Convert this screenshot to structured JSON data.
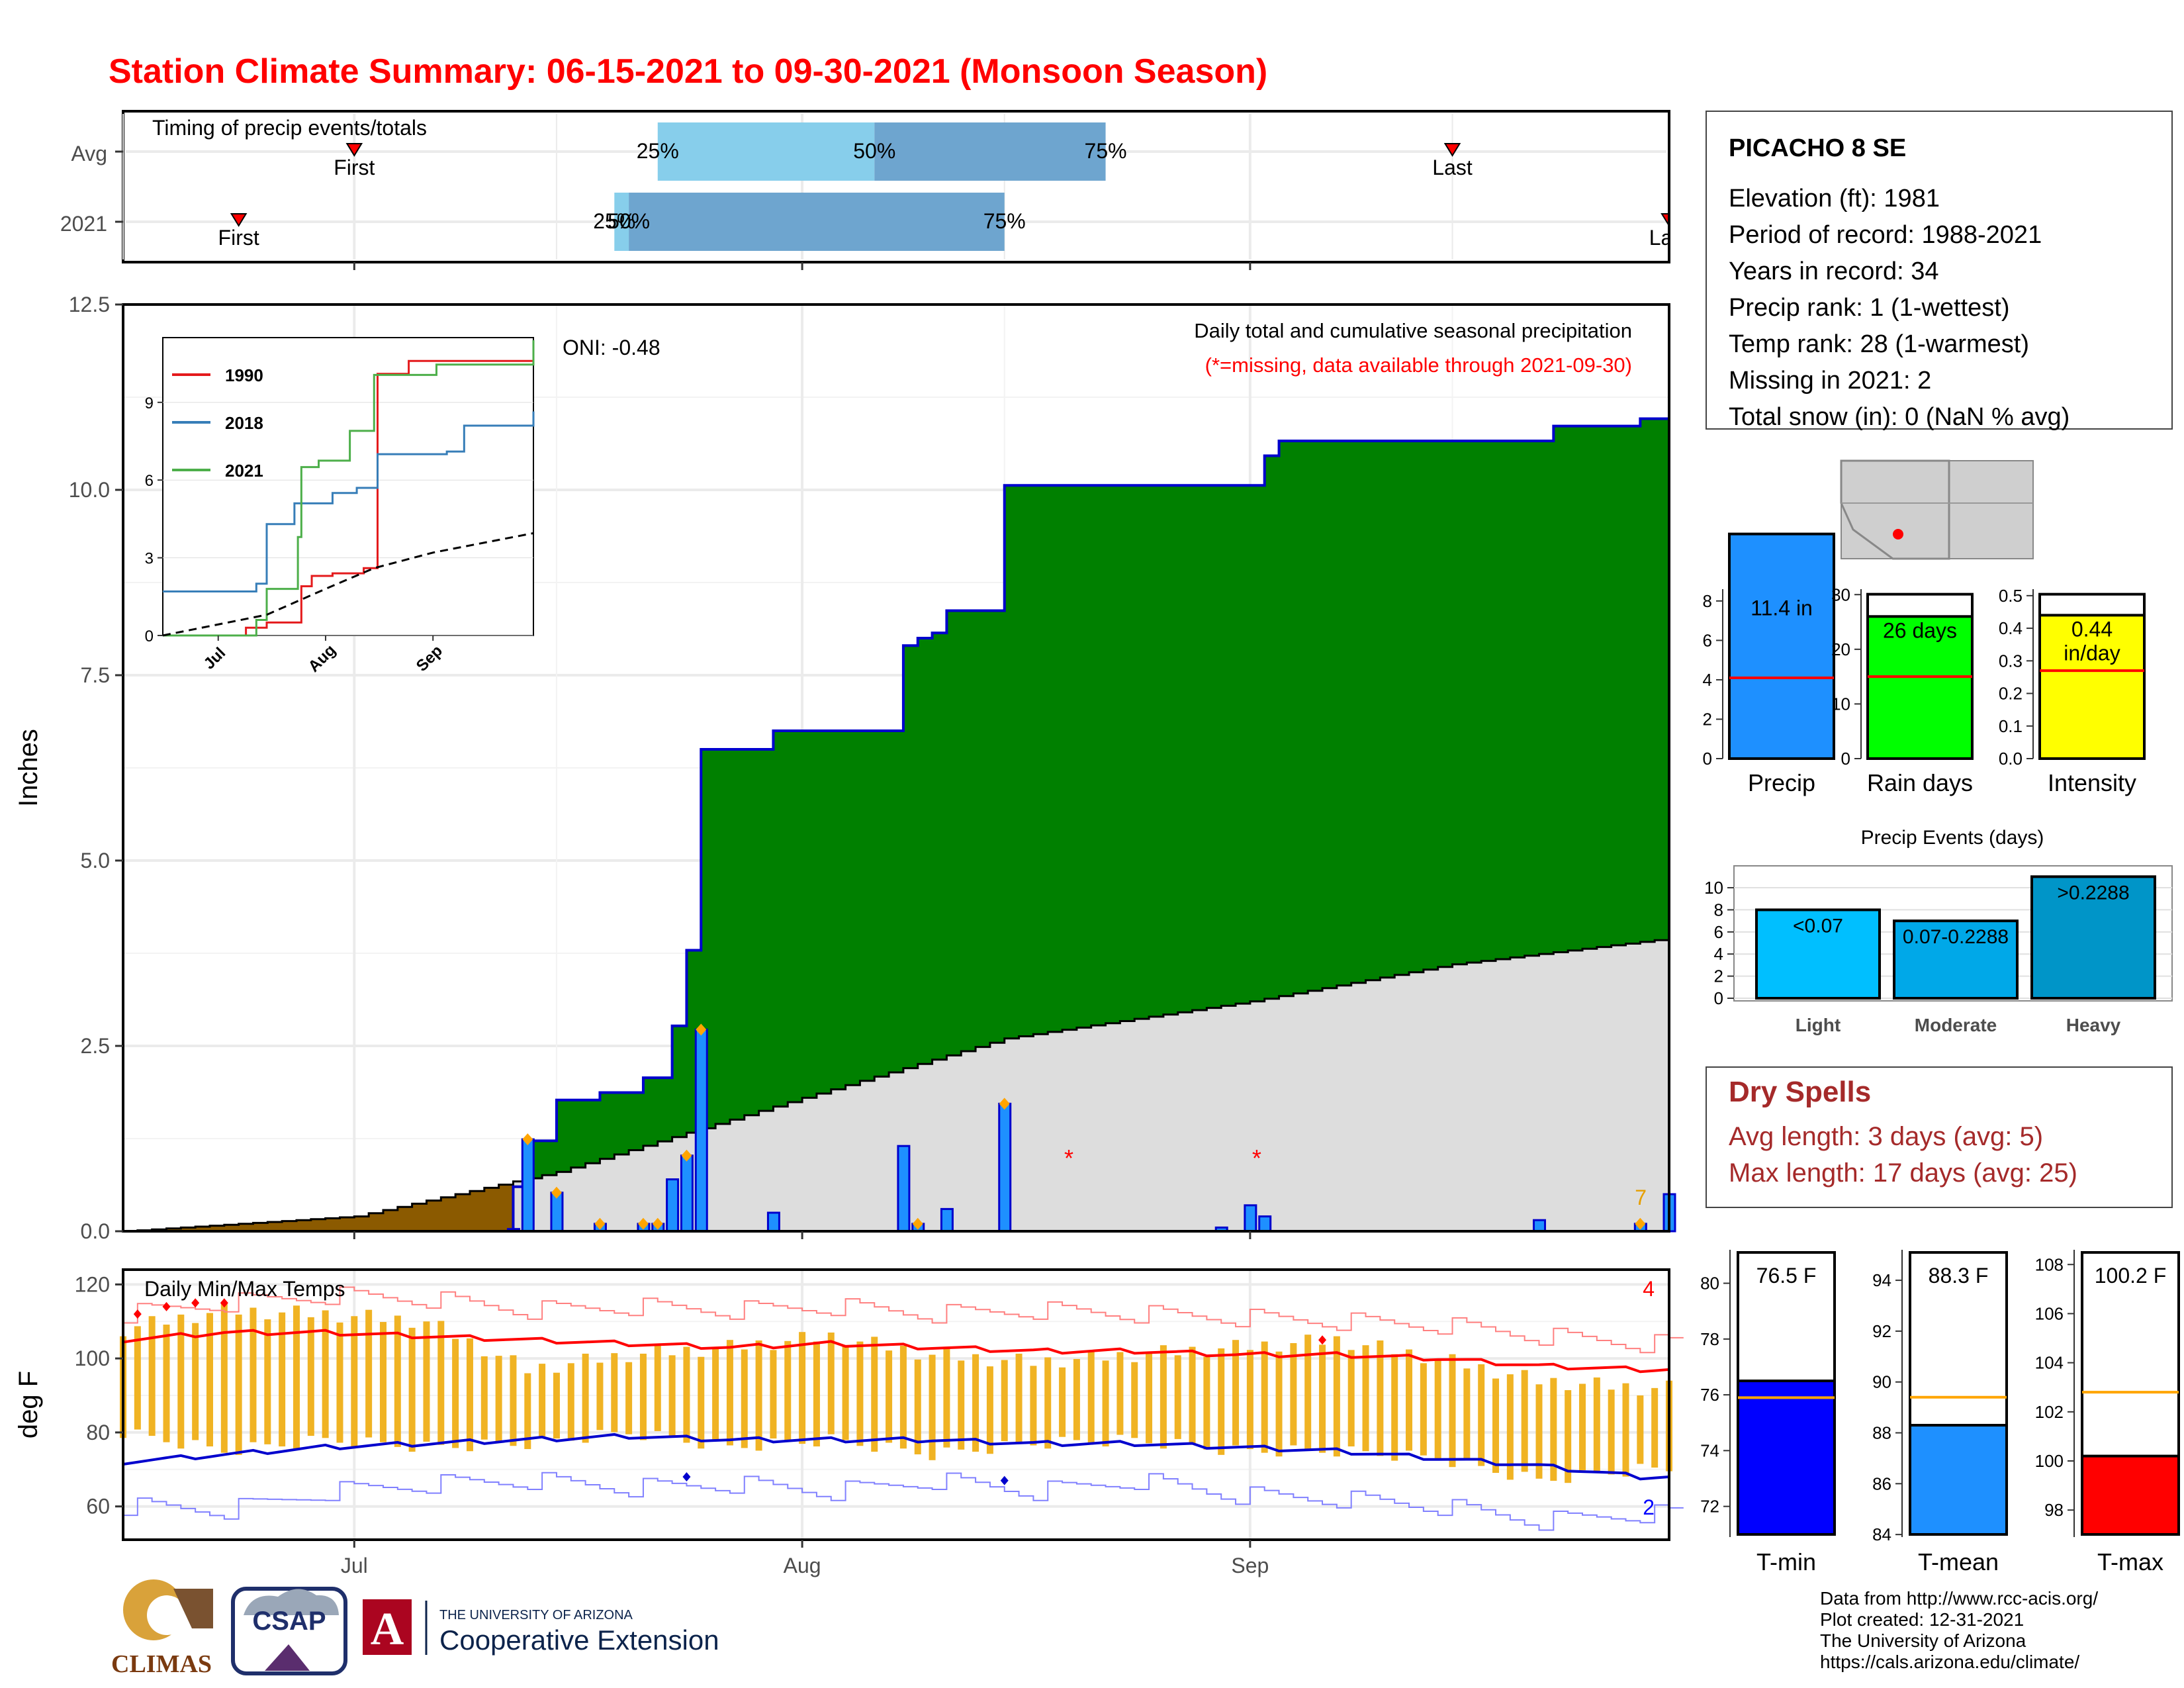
{
  "title": "Station Climate Summary: 06-15-2021 to 09-30-2021 (Monsoon Season)",
  "station": {
    "name": "PICACHO 8 SE",
    "lines": [
      "Elevation (ft): 1981",
      "Period of record: 1988-2021",
      "Years in record: 34",
      "Precip rank: 1 (1-wettest)",
      "Temp rank: 28 (1-warmest)",
      "Missing in 2021: 2",
      "Total snow (in): 0 (NaN % avg)"
    ]
  },
  "timing": {
    "title": "Timing of precip events/totals",
    "rows": [
      "Avg",
      "2021"
    ],
    "avg": {
      "first": "2021-07-01",
      "p25": "2021-07-22",
      "p50": "2021-08-06",
      "p75": "2021-08-22",
      "last": "2021-09-15"
    },
    "y2021": {
      "first": "2021-06-23",
      "p25": "2021-07-19",
      "p50": "2021-07-20",
      "p75": "2021-08-15",
      "last": "2021-09-30"
    },
    "labels": {
      "first": "First",
      "last": "Last",
      "p25": "25%",
      "p50": "50%",
      "p75": "75%"
    }
  },
  "main": {
    "ylabel": "Inches",
    "legend_line1": "Daily total and cumulative seasonal precipitation",
    "legend_line2": "(*=missing, data available through 2021-09-30)",
    "oni": "ONI: -0.48",
    "yticks": [
      "0.0",
      "2.5",
      "5.0",
      "7.5",
      "10.0",
      "12.5"
    ],
    "xticks": [
      "Jul",
      "Aug",
      "Sep"
    ],
    "days_count_label": "7",
    "missing_marker": "*"
  },
  "inset": {
    "legend": [
      "1990",
      "2018",
      "2021"
    ],
    "colors": [
      "#e41a1c",
      "#377eb8",
      "#4daf4a"
    ],
    "yticks": [
      "0",
      "3",
      "6",
      "9"
    ],
    "xticks": [
      "Jul",
      "Aug",
      "Sep"
    ]
  },
  "temps": {
    "title": "Daily Min/Max Temps",
    "ylabel": "deg F",
    "yticks": [
      "60",
      "80",
      "100",
      "120"
    ],
    "count_hot": "4",
    "count_cold": "2"
  },
  "summary_bars": {
    "precip": {
      "label": "Precip",
      "value_text": "11.4 in",
      "value": 11.4,
      "avg": 4.1,
      "yticks": [
        "0",
        "2",
        "4",
        "6",
        "8"
      ]
    },
    "raindays": {
      "label": "Rain days",
      "value_text": "26 days",
      "value": 26,
      "avg": 15,
      "yticks": [
        "0",
        "10",
        "20",
        "30"
      ]
    },
    "intensity": {
      "label": "Intensity",
      "value_text": "0.44",
      "unit": "in/day",
      "value": 0.44,
      "avg": 0.27,
      "yticks": [
        "0.0",
        "0.1",
        "0.2",
        "0.3",
        "0.4",
        "0.5"
      ]
    }
  },
  "events": {
    "title": "Precip Events (days)",
    "categories": [
      "Light",
      "Moderate",
      "Heavy"
    ],
    "labels": [
      "<0.07",
      "0.07-0.2288",
      ">0.2288"
    ],
    "values": [
      8,
      7,
      11
    ],
    "yticks": [
      "0",
      "2",
      "4",
      "6",
      "8",
      "10"
    ]
  },
  "dry_spells": {
    "title": "Dry Spells",
    "avg": "Avg length: 3 days (avg: 5)",
    "max": "Max length: 17 days (avg: 25)"
  },
  "temp_bars": {
    "tmin": {
      "label": "T-min",
      "value_text": "76.5 F",
      "value": 76.5,
      "avg": 75.9,
      "yticks": [
        "72",
        "74",
        "76",
        "78",
        "80"
      ]
    },
    "tmean": {
      "label": "T-mean",
      "value_text": "88.3 F",
      "value": 88.3,
      "avg": 89.4,
      "yticks": [
        "84",
        "86",
        "88",
        "90",
        "92",
        "94"
      ]
    },
    "tmax": {
      "label": "T-max",
      "value_text": "100.2 F",
      "value": 100.2,
      "avg": 102.8,
      "yticks": [
        "98",
        "100",
        "102",
        "104",
        "106",
        "108"
      ]
    }
  },
  "credits": [
    "Data from http://www.rcc-acis.org/",
    "Plot created: 12-31-2021",
    "The University of Arizona",
    "https://cals.arizona.edu/climate/"
  ],
  "logos": {
    "climas": "CLIMAS",
    "csap": "CSAP",
    "ua_small": "THE UNIVERSITY OF ARIZONA",
    "ua_big": "Cooperative Extension",
    "ua_letter": "A"
  },
  "chart_data": [
    {
      "type": "area",
      "title": "Daily total and cumulative seasonal precipitation",
      "ylabel": "Inches",
      "ylim": [
        0,
        12.5
      ],
      "xlim": [
        "2021-06-15",
        "2021-09-30"
      ],
      "x_cum": [
        "2021-06-15",
        "2021-07-12",
        "2021-07-13",
        "2021-07-15",
        "2021-07-18",
        "2021-07-21",
        "2021-07-23",
        "2021-07-24",
        "2021-07-25",
        "2021-07-26",
        "2021-07-27",
        "2021-07-28",
        "2021-07-30",
        "2021-08-03",
        "2021-08-07",
        "2021-08-08",
        "2021-08-09",
        "2021-08-10",
        "2021-08-11",
        "2021-08-14",
        "2021-08-15",
        "2021-08-16",
        "2021-09-01",
        "2021-09-02",
        "2021-09-03",
        "2021-09-21",
        "2021-09-22",
        "2021-09-27",
        "2021-09-28",
        "2021-09-30"
      ],
      "cumulative_2021": [
        0.0,
        0.6,
        1.22,
        1.77,
        1.87,
        2.07,
        2.77,
        3.79,
        6.5,
        6.5,
        6.5,
        6.5,
        6.75,
        6.75,
        6.75,
        7.9,
        8.0,
        8.07,
        8.37,
        8.37,
        10.06,
        10.06,
        10.06,
        10.46,
        10.66,
        10.66,
        10.86,
        10.86,
        10.96,
        11.4
      ],
      "daily_dates": [
        "2021-07-12",
        "2021-07-13",
        "2021-07-15",
        "2021-07-18",
        "2021-07-21",
        "2021-07-22",
        "2021-07-23",
        "2021-07-24",
        "2021-07-25",
        "2021-07-30",
        "2021-08-08",
        "2021-08-09",
        "2021-08-11",
        "2021-08-15",
        "2021-08-30",
        "2021-09-01",
        "2021-09-02",
        "2021-09-21",
        "2021-09-28",
        "2021-09-30"
      ],
      "daily_values": [
        0.03,
        1.24,
        0.52,
        0.1,
        0.1,
        0.1,
        0.7,
        1.02,
        2.72,
        0.25,
        1.15,
        0.1,
        0.3,
        1.72,
        0.05,
        0.35,
        0.2,
        0.15,
        0.1,
        0.5
      ],
      "avg_cumulative_x": [
        "2021-06-15",
        "2021-07-01",
        "2021-07-15",
        "2021-08-01",
        "2021-08-15",
        "2021-09-01",
        "2021-09-15",
        "2021-09-30"
      ],
      "avg_cumulative": [
        0.0,
        0.2,
        0.8,
        1.8,
        2.6,
        3.1,
        3.6,
        3.95
      ],
      "missing_dates": [
        "2021-08-19",
        "2021-09-01"
      ]
    },
    {
      "type": "line",
      "title": "Inset: cumulative precipitation comparison",
      "xlim": [
        "2021-06-15",
        "2021-09-30"
      ],
      "ylim": [
        0,
        11.5
      ],
      "series": [
        {
          "name": "1990",
          "x": [
            "2021-06-15",
            "2021-07-09",
            "2021-07-15",
            "2021-07-25",
            "2021-07-28",
            "2021-08-03",
            "2021-08-12",
            "2021-08-16",
            "2021-08-25",
            "2021-09-30"
          ],
          "values": [
            0.0,
            0.3,
            0.5,
            1.9,
            2.3,
            2.4,
            2.6,
            10.1,
            10.6,
            10.65
          ]
        },
        {
          "name": "2018",
          "x": [
            "2021-06-15",
            "2021-06-22",
            "2021-07-12",
            "2021-07-15",
            "2021-07-23",
            "2021-08-03",
            "2021-08-10",
            "2021-08-16",
            "2021-09-05",
            "2021-09-10",
            "2021-09-30"
          ],
          "values": [
            1.7,
            1.7,
            2.0,
            4.3,
            5.1,
            5.5,
            5.7,
            7.0,
            7.1,
            8.1,
            8.65
          ]
        },
        {
          "name": "2021",
          "x": [
            "2021-06-15",
            "2021-07-12",
            "2021-07-15",
            "2021-07-24",
            "2021-07-25",
            "2021-07-30",
            "2021-08-08",
            "2021-08-15",
            "2021-09-02",
            "2021-09-30"
          ],
          "values": [
            0.0,
            0.6,
            1.8,
            3.8,
            6.5,
            6.75,
            7.9,
            10.06,
            10.46,
            11.4
          ]
        },
        {
          "x": [
            "2021-06-15",
            "2021-07-15",
            "2021-08-01",
            "2021-08-15",
            "2021-09-01",
            "2021-09-30"
          ],
          "values": [
            0.0,
            0.8,
            1.8,
            2.6,
            3.2,
            3.95
          ]
        }
      ]
    },
    {
      "type": "line",
      "title": "Daily Min/Max Temps",
      "ylabel": "deg F",
      "ylim": [
        51,
        124
      ],
      "x_weeks": [
        "2021-06-15",
        "2021-06-22",
        "2021-06-29",
        "2021-07-06",
        "2021-07-13",
        "2021-07-20",
        "2021-07-27",
        "2021-08-03",
        "2021-08-10",
        "2021-08-17",
        "2021-08-24",
        "2021-08-31",
        "2021-09-07",
        "2021-09-14",
        "2021-09-21",
        "2021-09-28"
      ],
      "avg_max": [
        105,
        107,
        107,
        106,
        105,
        104,
        103,
        104,
        103,
        102,
        102,
        101,
        101,
        100,
        98,
        97
      ],
      "avg_min": [
        72,
        74,
        76,
        77,
        78,
        79,
        78,
        78,
        78,
        77,
        77,
        76,
        75,
        73,
        71,
        68
      ],
      "record_max": [
        112,
        115,
        117,
        116,
        113,
        114,
        113,
        114,
        112,
        113,
        112,
        111,
        110,
        109,
        106,
        104
      ],
      "record_min": [
        60,
        59,
        64,
        66,
        67,
        65,
        66,
        64,
        67,
        64,
        67,
        63,
        62,
        60,
        56,
        58
      ],
      "daily_max_range": [
        108,
        113,
        112,
        110,
        97,
        101,
        103,
        106,
        101,
        99,
        101,
        103,
        105,
        100,
        94,
        92
      ],
      "daily_min_range": [
        80,
        75,
        78,
        76,
        77,
        80,
        76,
        78,
        74,
        77,
        78,
        75,
        75,
        73,
        67,
        70
      ]
    },
    {
      "type": "bar",
      "title": "Precip Events (days)",
      "categories": [
        "Light",
        "Moderate",
        "Heavy"
      ],
      "values": [
        8,
        7,
        11
      ],
      "ylim": [
        0,
        11.5
      ]
    }
  ]
}
